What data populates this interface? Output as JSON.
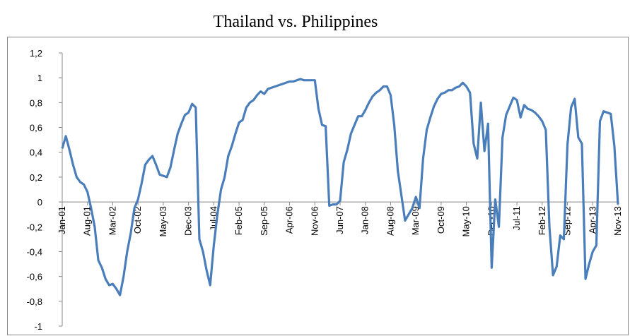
{
  "chart_data": {
    "type": "line",
    "title": "Thailand vs. Philippines",
    "categories": [
      "Jan-01",
      null,
      null,
      null,
      null,
      null,
      null,
      "Aug-01",
      null,
      null,
      null,
      null,
      null,
      null,
      "Mar-02",
      null,
      null,
      null,
      null,
      null,
      null,
      "Oct-02",
      null,
      null,
      null,
      null,
      null,
      null,
      "May-03",
      null,
      null,
      null,
      null,
      null,
      null,
      "Dec-03",
      null,
      null,
      null,
      null,
      null,
      null,
      "Jul-04",
      null,
      null,
      null,
      null,
      null,
      null,
      "Feb-05",
      null,
      null,
      null,
      null,
      null,
      null,
      "Sep-05",
      null,
      null,
      null,
      null,
      null,
      null,
      "Apr-06",
      null,
      null,
      null,
      null,
      null,
      null,
      "Nov-06",
      null,
      null,
      null,
      null,
      null,
      null,
      "Jun-07",
      null,
      null,
      null,
      null,
      null,
      null,
      "Jan-08",
      null,
      null,
      null,
      null,
      null,
      null,
      "Aug-08",
      null,
      null,
      null,
      null,
      null,
      null,
      "Mar-09",
      null,
      null,
      null,
      null,
      null,
      null,
      "Oct-09",
      null,
      null,
      null,
      null,
      null,
      null,
      "May-10",
      null,
      null,
      null,
      null,
      null,
      null,
      "Dec-10",
      null,
      null,
      null,
      null,
      null,
      null,
      "Jul-11",
      null,
      null,
      null,
      null,
      null,
      null,
      "Feb-12",
      null,
      null,
      null,
      null,
      null,
      null,
      "Sep-12",
      null,
      null,
      null,
      null,
      null,
      null,
      "Apr-13",
      null,
      null,
      null,
      null,
      null,
      null,
      "Nov-13"
    ],
    "values": [
      0.43,
      0.53,
      0.42,
      0.3,
      0.2,
      0.16,
      0.14,
      0.08,
      -0.05,
      -0.2,
      -0.47,
      -0.53,
      -0.62,
      -0.67,
      -0.66,
      -0.7,
      -0.75,
      -0.6,
      -0.4,
      -0.25,
      -0.05,
      0.02,
      0.15,
      0.3,
      0.34,
      0.37,
      0.3,
      0.22,
      0.21,
      0.2,
      0.28,
      0.42,
      0.55,
      0.63,
      0.7,
      0.72,
      0.79,
      0.76,
      -0.3,
      -0.4,
      -0.55,
      -0.67,
      -0.35,
      -0.1,
      0.1,
      0.2,
      0.37,
      0.45,
      0.55,
      0.64,
      0.66,
      0.76,
      0.8,
      0.82,
      0.86,
      0.89,
      0.87,
      0.91,
      0.92,
      0.93,
      0.94,
      0.95,
      0.96,
      0.97,
      0.97,
      0.98,
      0.99,
      0.98,
      0.98,
      0.98,
      0.98,
      0.75,
      0.62,
      0.61,
      -0.03,
      -0.02,
      -0.02,
      0.01,
      0.32,
      0.42,
      0.55,
      0.62,
      0.69,
      0.69,
      0.74,
      0.8,
      0.85,
      0.88,
      0.9,
      0.93,
      0.93,
      0.86,
      0.62,
      0.25,
      0.05,
      -0.15,
      -0.1,
      -0.05,
      0.04,
      -0.05,
      0.35,
      0.58,
      0.68,
      0.77,
      0.83,
      0.87,
      0.88,
      0.9,
      0.9,
      0.92,
      0.93,
      0.96,
      0.93,
      0.88,
      0.47,
      0.35,
      0.8,
      0.41,
      0.63,
      -0.53,
      0.02,
      -0.2,
      0.52,
      0.7,
      0.77,
      0.84,
      0.82,
      0.68,
      0.78,
      0.75,
      0.74,
      0.72,
      0.69,
      0.65,
      0.58,
      -0.2,
      -0.59,
      -0.52,
      -0.27,
      -0.3,
      0.46,
      0.76,
      0.83,
      0.52,
      0.47,
      -0.62,
      -0.5,
      -0.4,
      -0.35,
      0.65,
      0.73,
      0.72,
      0.71,
      0.45,
      -0.02
    ],
    "color": "#4a7ebb",
    "ylim": [
      -1,
      1.2
    ],
    "yticks": [
      {
        "value": 1.2,
        "label": "1,2"
      },
      1,
      {
        "value": 0.8,
        "label": "0,8"
      },
      {
        "value": 0.6,
        "label": "0,6"
      },
      {
        "value": 0.4,
        "label": "0,4"
      },
      {
        "value": 0.2,
        "label": "0,2"
      },
      0,
      {
        "value": -0.2,
        "label": "-0,2"
      },
      {
        "value": -0.4,
        "label": "-0,4"
      },
      {
        "value": -0.6,
        "label": "-0,6"
      },
      {
        "value": -0.8,
        "label": "-0,8"
      },
      -1
    ],
    "grid": false
  }
}
